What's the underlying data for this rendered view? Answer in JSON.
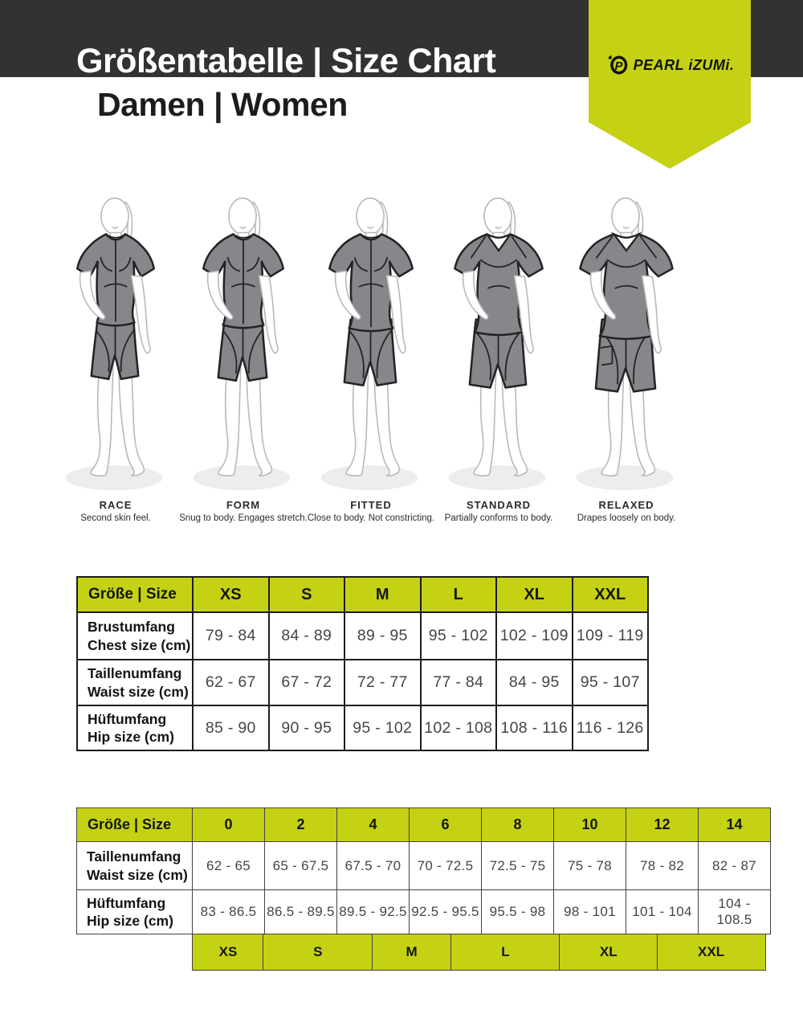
{
  "header": {
    "title": "Größentabelle | Size Chart",
    "subtitle": "Damen | Women",
    "brand": "PEARL iZUMi.",
    "colors": {
      "bar": "#323232",
      "accent": "#c4d213"
    }
  },
  "fits": [
    {
      "name": "RACE",
      "desc": "Second skin feel."
    },
    {
      "name": "FORM",
      "desc": "Snug to body. Engages stretch."
    },
    {
      "name": "FITTED",
      "desc": "Close to body. Not constricting."
    },
    {
      "name": "STANDARD",
      "desc": "Partially conforms to body."
    },
    {
      "name": "RELAXED",
      "desc": "Drapes loosely on body."
    }
  ],
  "letter_table": {
    "corner": "Größe | Size",
    "columns": [
      "XS",
      "S",
      "M",
      "L",
      "XL",
      "XXL"
    ],
    "rows": [
      {
        "label": "Brustumfang",
        "sublabel": "Chest size (cm)",
        "values": [
          "79 - 84",
          "84 - 89",
          "89 - 95",
          "95 - 102",
          "102 - 109",
          "109 - 119"
        ]
      },
      {
        "label": "Taillenumfang",
        "sublabel": "Waist size (cm)",
        "values": [
          "62 - 67",
          "67 - 72",
          "72 - 77",
          "77 - 84",
          "84 - 95",
          "95 - 107"
        ]
      },
      {
        "label": "Hüftumfang",
        "sublabel": "Hip size (cm)",
        "values": [
          "85 - 90",
          "90 - 95",
          "95 - 102",
          "102 - 108",
          "108 - 116",
          "116 - 126"
        ]
      }
    ]
  },
  "numeric_table": {
    "corner": "Größe | Size",
    "columns": [
      "0",
      "2",
      "4",
      "6",
      "8",
      "10",
      "12",
      "14"
    ],
    "rows": [
      {
        "label": "Taillenumfang",
        "sublabel": "Waist size (cm)",
        "values": [
          "62 - 65",
          "65 - 67.5",
          "67.5 - 70",
          "70 - 72.5",
          "72.5 - 75",
          "75 - 78",
          "78 - 82",
          "82 - 87"
        ]
      },
      {
        "label": "Hüftumfang",
        "sublabel": "Hip size (cm)",
        "values": [
          "83 - 86.5",
          "86.5 - 89.5",
          "89.5 - 92.5",
          "92.5 - 95.5",
          "95.5 - 98",
          "98 - 101",
          "101 - 104",
          "104 - 108.5"
        ]
      }
    ],
    "letter_row": [
      "XS",
      "S",
      "M",
      "L",
      "XL",
      "XXL"
    ]
  }
}
